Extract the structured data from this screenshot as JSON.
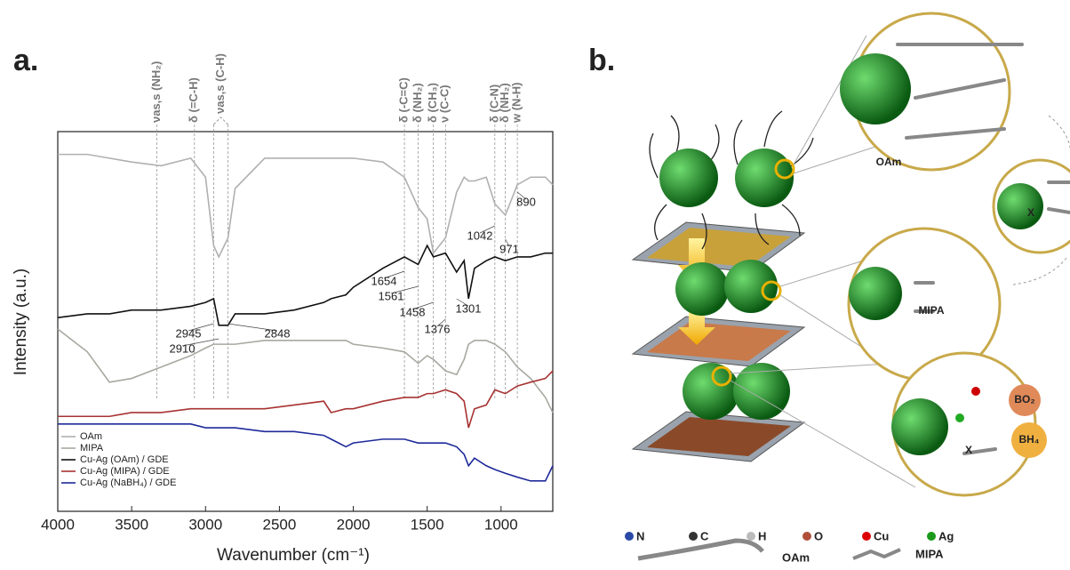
{
  "chart_data": {
    "type": "line",
    "x": [
      4000,
      3800,
      3650,
      3500,
      3300,
      3100,
      3000,
      2945,
      2910,
      2848,
      2800,
      2600,
      2400,
      2200,
      2150,
      2050,
      2000,
      1800,
      1654,
      1561,
      1500,
      1458,
      1376,
      1301,
      1250,
      1220,
      1180,
      1100,
      1042,
      971,
      890,
      800,
      700,
      650
    ],
    "series": [
      {
        "name": "OAm",
        "color": "#b0b0b0",
        "values": [
          94,
          94,
          93,
          92,
          91,
          93,
          88,
          70,
          67,
          72,
          85,
          93,
          93,
          93,
          93,
          93,
          93,
          92,
          88,
          80,
          77,
          68,
          72,
          84,
          88,
          87,
          87,
          88,
          81,
          78,
          86,
          88,
          88,
          86
        ]
      },
      {
        "name": "MIPA",
        "color": "#a8a8a0",
        "values": [
          48,
          42,
          34,
          35,
          38,
          41,
          43,
          44,
          44,
          44,
          44,
          45,
          45,
          45,
          45,
          45,
          44,
          43,
          42,
          39,
          41,
          40,
          37,
          36,
          40,
          44,
          45,
          45,
          44,
          42,
          38,
          35,
          30,
          26
        ]
      },
      {
        "name": "Cu-Ag (OAm) / GDE",
        "color": "#111111",
        "values": [
          51,
          52,
          52,
          53,
          53,
          54,
          55,
          56,
          49,
          49,
          52,
          52,
          53,
          55,
          56,
          57,
          59,
          64,
          67,
          65,
          70,
          67,
          68,
          63,
          66,
          56,
          64,
          66,
          67,
          66,
          67,
          67,
          68,
          68
        ]
      },
      {
        "name": "Cu-Ag (MIPA) / GDE",
        "color": "#a83232",
        "values": [
          25,
          25,
          25,
          26,
          26,
          27,
          27,
          27,
          27,
          27,
          27,
          27,
          28,
          29,
          26,
          27,
          27,
          29,
          30,
          30,
          31,
          31,
          32,
          31,
          29,
          22,
          27,
          28,
          32,
          31,
          33,
          34,
          35,
          37
        ]
      },
      {
        "name": "Cu-Ag (NaBH₄) / GDE",
        "color": "#1e2a9a",
        "values": [
          23,
          23,
          23,
          23,
          23,
          23,
          22,
          22,
          22,
          22,
          22,
          21,
          21,
          20,
          19,
          17,
          18,
          19,
          19,
          18,
          18,
          18,
          18,
          17,
          15,
          12,
          14,
          12,
          11,
          10,
          9,
          8,
          8,
          12
        ]
      }
    ],
    "xlim": [
      4000,
      650
    ],
    "ylim": [
      0,
      100
    ],
    "xticks": [
      4000,
      3500,
      3000,
      2500,
      2000,
      1500,
      1000
    ],
    "xlabel": "Wavenumber (cm⁻¹)",
    "ylabel": "Intensity (a.u.)",
    "peak_labels": [
      2945,
      2848,
      2910,
      1654,
      1561,
      1458,
      1376,
      1301,
      1042,
      971,
      890
    ],
    "band_assignments": [
      {
        "label": "νas,s (NH₂)",
        "x": 3330
      },
      {
        "label": "δ (=C-H)",
        "x": 3075
      },
      {
        "label": "νas,s (C-H)",
        "x": [
          2945,
          2848
        ]
      },
      {
        "label": "δ (-C=C)",
        "x": 1654
      },
      {
        "label": "δ (NH₂)",
        "x": 1561
      },
      {
        "label": "δ (CH₃)",
        "x": 1458
      },
      {
        "label": "ν (C-C)",
        "x": 1376
      },
      {
        "label": "δ (C-N)",
        "x": 1042
      },
      {
        "label": "δ (NH₂)",
        "x": 971
      },
      {
        "label": "w (N-H)",
        "x": 890
      }
    ]
  },
  "panel_labels": {
    "a": "a.",
    "b": "b."
  },
  "diagram": {
    "zoom_labels": [
      "OAm",
      "MIPA"
    ],
    "species": [
      "BO₂",
      "BH₄"
    ],
    "blocked": [
      "X",
      "X"
    ],
    "legend": [
      "N",
      "C",
      "H",
      "O",
      "Cu",
      "Ag"
    ],
    "molecules": [
      "OAm",
      "MIPA"
    ]
  }
}
